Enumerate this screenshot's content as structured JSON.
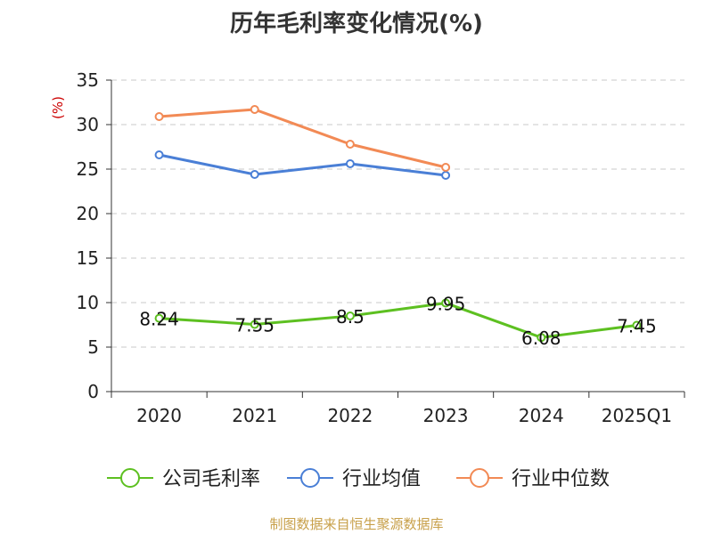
{
  "title": "历年毛利率变化情况(%)",
  "source_text": "制图数据来自恒生聚源数据库",
  "chart_data": {
    "type": "line",
    "title": "历年毛利率变化情况(%)",
    "ylabel": "(%)",
    "xlabel": "",
    "categories": [
      "2020",
      "2021",
      "2022",
      "2023",
      "2024",
      "2025Q1"
    ],
    "ylim": [
      0,
      35
    ],
    "yticks": [
      0,
      5,
      10,
      15,
      20,
      25,
      30,
      35
    ],
    "grid": true,
    "legend_position": "bottom",
    "series": [
      {
        "name": "公司毛利率",
        "color": "#5dc021",
        "values": [
          8.24,
          7.55,
          8.5,
          9.95,
          6.08,
          7.45
        ],
        "labels": [
          "8.24",
          "7.55",
          "8.5",
          "9.95",
          "6.08",
          "7.45"
        ]
      },
      {
        "name": "行业均值",
        "color": "#4a7fd6",
        "values": [
          26.6,
          24.4,
          25.6,
          24.3,
          null,
          null
        ]
      },
      {
        "name": "行业中位数",
        "color": "#f28a55",
        "values": [
          30.9,
          31.7,
          27.8,
          25.2,
          null,
          null
        ]
      }
    ]
  }
}
